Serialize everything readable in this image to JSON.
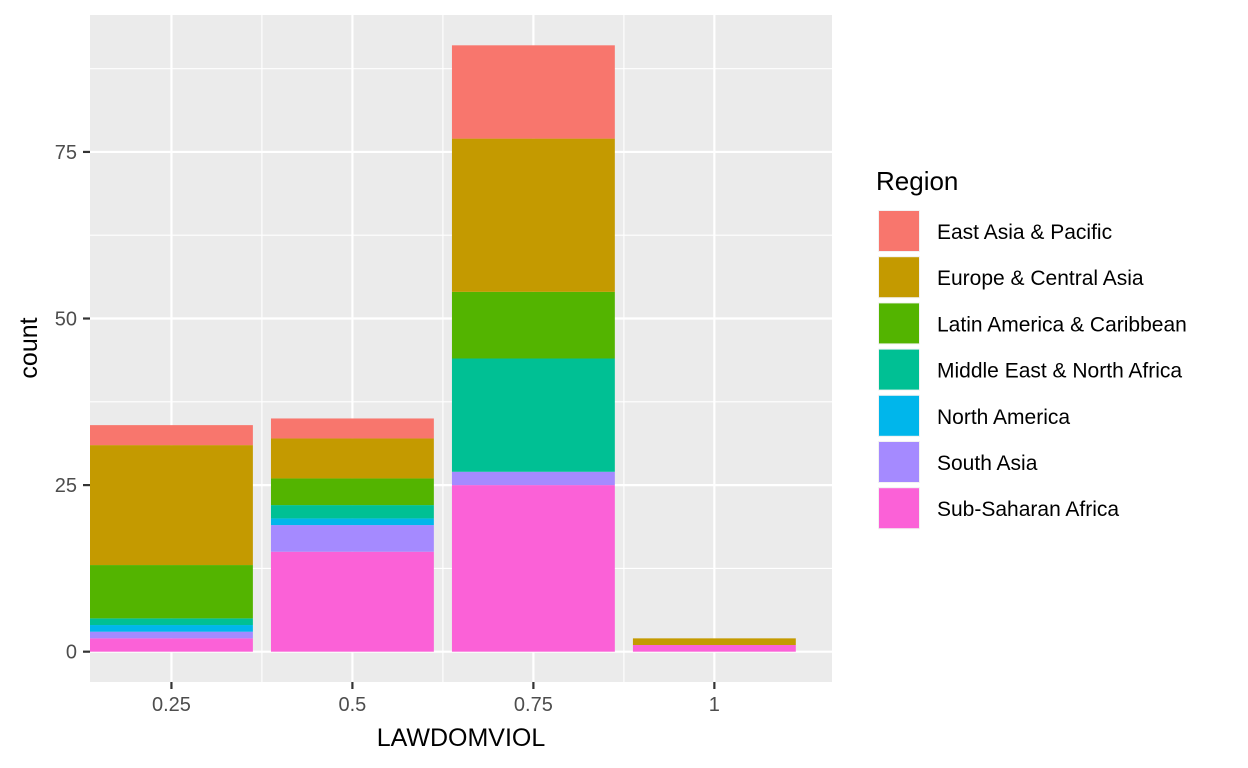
{
  "chart_data": {
    "type": "bar",
    "stacked": true,
    "title": "",
    "xlabel": "LAWDOMVIOL",
    "ylabel": "count",
    "categories": [
      "0.25",
      "0.5",
      "0.75",
      "1"
    ],
    "x_values": [
      0.25,
      0.5,
      0.75,
      1
    ],
    "xlim": [
      0.1375,
      1.1625
    ],
    "ylim": [
      -4.55,
      95.55
    ],
    "y_ticks": [
      0,
      25,
      50,
      75
    ],
    "grid": true,
    "legend_title": "Region",
    "legend_position": "right",
    "series": [
      {
        "name": "East Asia & Pacific",
        "color": "#F8766D",
        "values": [
          3,
          3,
          14,
          0
        ]
      },
      {
        "name": "Europe & Central Asia",
        "color": "#C49A00",
        "values": [
          18,
          6,
          23,
          1
        ]
      },
      {
        "name": "Latin America & Caribbean",
        "color": "#53B400",
        "values": [
          8,
          4,
          10,
          0
        ]
      },
      {
        "name": "Middle East & North Africa",
        "color": "#00C094",
        "values": [
          1,
          2,
          17,
          0
        ]
      },
      {
        "name": "North America",
        "color": "#00B6EB",
        "values": [
          1,
          1,
          0,
          0
        ]
      },
      {
        "name": "South Asia",
        "color": "#A58AFF",
        "values": [
          1,
          4,
          2,
          0
        ]
      },
      {
        "name": "Sub-Saharan Africa",
        "color": "#FB61D7",
        "values": [
          2,
          15,
          25,
          1
        ]
      }
    ]
  }
}
